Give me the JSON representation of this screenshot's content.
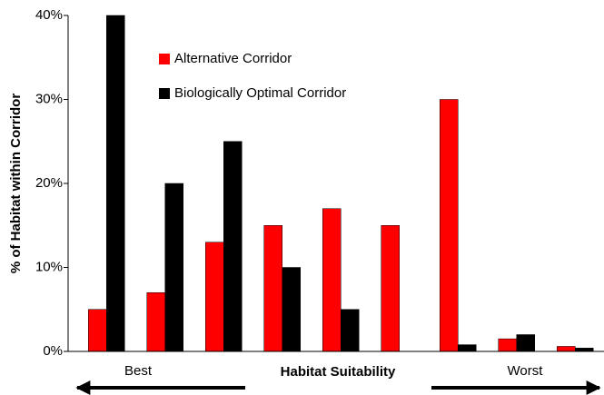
{
  "chart_data": {
    "type": "bar",
    "categories": [
      null,
      null,
      null,
      null,
      null,
      null,
      null,
      null,
      null
    ],
    "series": [
      {
        "name": "Alternative Corridor",
        "color": "#ff0000",
        "values": [
          5,
          7,
          13,
          15,
          17,
          15,
          30,
          1.5,
          0.6
        ]
      },
      {
        "name": "Biologically Optimal Corridor",
        "color": "#000000",
        "values": [
          40,
          20,
          25,
          10,
          5,
          0,
          0.8,
          2,
          0.4
        ]
      }
    ],
    "y_label": "% of Habitat within Corridor",
    "x_label": "Habitat Suitability",
    "annotations": [
      "Best",
      "Worst"
    ],
    "ylim": [
      0,
      40
    ],
    "yticks": [
      {
        "value": 0,
        "label": "0%"
      },
      {
        "value": 10,
        "label": "10%"
      },
      {
        "value": 20,
        "label": "20%"
      },
      {
        "value": 30,
        "label": "30%"
      },
      {
        "value": 40,
        "label": "40%"
      }
    ],
    "grid": false,
    "legend": "upper center"
  }
}
